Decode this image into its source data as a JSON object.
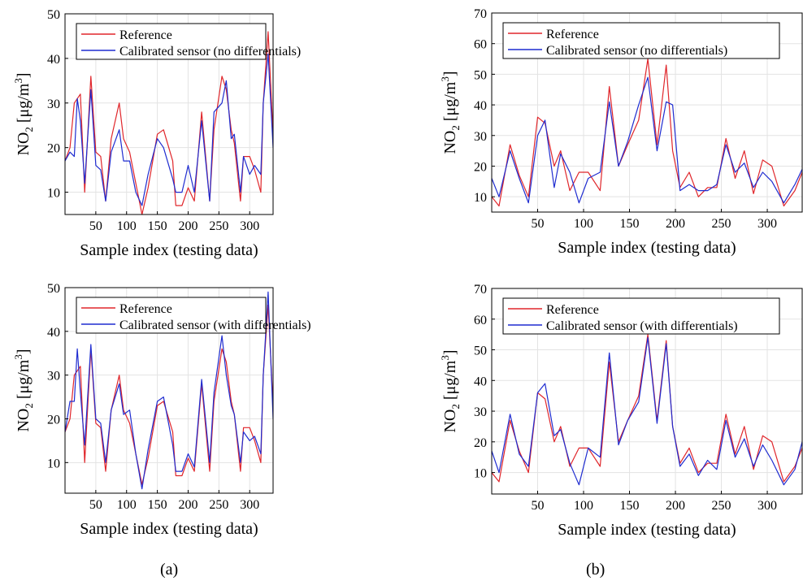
{
  "captions": [
    "(a)",
    "(b)"
  ],
  "colors": {
    "reference": "#e0262b",
    "sensor": "#1f2cd0",
    "grid": "#e3e3e3",
    "axis": "#000000"
  },
  "chart_data": [
    {
      "type": "line",
      "panel": "a-top",
      "xlabel": "Sample index (testing data)",
      "ylabel_main": "NO",
      "ylabel_sub": "2",
      "ylabel_unit": "[μg/m",
      "ylabel_sup": "3",
      "ylabel_close": "]",
      "xlim": [
        0,
        338
      ],
      "ylim": [
        5,
        50
      ],
      "xticks": [
        50,
        100,
        150,
        200,
        250,
        300
      ],
      "yticks": [
        10,
        20,
        30,
        40,
        50
      ],
      "grid": true,
      "legend": "top-left",
      "series": [
        {
          "name": "Reference",
          "color": "#e0262b",
          "x": [
            0,
            8,
            15,
            25,
            32,
            42,
            50,
            58,
            66,
            75,
            88,
            95,
            105,
            115,
            125,
            135,
            150,
            160,
            175,
            180,
            190,
            200,
            210,
            222,
            235,
            242,
            255,
            262,
            270,
            275,
            285,
            290,
            300,
            308,
            318,
            322,
            330,
            338
          ],
          "y": [
            17,
            20,
            30,
            32,
            10,
            36,
            19,
            18,
            8,
            22,
            30,
            22,
            19,
            12,
            5,
            11,
            23,
            24,
            17,
            7,
            7,
            11,
            8,
            28,
            8,
            24,
            36,
            33,
            24,
            21,
            8,
            18,
            18,
            15,
            10,
            30,
            46,
            23
          ]
        },
        {
          "name": "Calibrated sensor (no differentials)",
          "color": "#1f2cd0",
          "x": [
            0,
            8,
            15,
            20,
            25,
            32,
            42,
            50,
            58,
            66,
            75,
            88,
            95,
            105,
            115,
            125,
            135,
            150,
            160,
            175,
            180,
            190,
            200,
            210,
            222,
            235,
            242,
            255,
            262,
            270,
            275,
            285,
            290,
            300,
            308,
            318,
            322,
            330,
            338
          ],
          "y": [
            17,
            19,
            18,
            31,
            26,
            12,
            33,
            16,
            15,
            8,
            19,
            24,
            17,
            17,
            10,
            7,
            14,
            22,
            20,
            13,
            10,
            10,
            16,
            10,
            26,
            8,
            28,
            30,
            35,
            22,
            23,
            10,
            18,
            14,
            16,
            14,
            30,
            41,
            20
          ]
        }
      ]
    },
    {
      "type": "line",
      "panel": "b-top",
      "xlabel": "Sample index (testing data)",
      "ylabel_main": "NO",
      "ylabel_sub": "2",
      "ylabel_unit": "[μg/m",
      "ylabel_sup": "3",
      "ylabel_close": "]",
      "xlim": [
        0,
        338
      ],
      "ylim": [
        5,
        70
      ],
      "xticks": [
        50,
        100,
        150,
        200,
        250,
        300
      ],
      "yticks": [
        10,
        20,
        30,
        40,
        50,
        60,
        70
      ],
      "grid": true,
      "legend": "top-left",
      "series": [
        {
          "name": "Reference",
          "color": "#e0262b",
          "x": [
            0,
            8,
            20,
            30,
            40,
            50,
            58,
            68,
            75,
            85,
            95,
            105,
            118,
            128,
            138,
            148,
            160,
            170,
            180,
            190,
            197,
            205,
            215,
            225,
            235,
            245,
            255,
            265,
            275,
            285,
            295,
            305,
            318,
            330,
            338
          ],
          "y": [
            10,
            7,
            27,
            17,
            10,
            36,
            34,
            20,
            25,
            12,
            18,
            18,
            12,
            46,
            20,
            27,
            35,
            55,
            27,
            53,
            25,
            13,
            18,
            10,
            13,
            13,
            29,
            16,
            25,
            11,
            22,
            20,
            7,
            12,
            18
          ]
        },
        {
          "name": "Calibrated sensor (no differentials)",
          "color": "#1f2cd0",
          "x": [
            0,
            8,
            20,
            30,
            40,
            50,
            58,
            68,
            75,
            85,
            95,
            105,
            118,
            128,
            138,
            148,
            160,
            170,
            180,
            190,
            197,
            205,
            215,
            225,
            235,
            245,
            255,
            265,
            275,
            285,
            295,
            305,
            318,
            330,
            338
          ],
          "y": [
            16,
            10,
            25,
            16,
            8,
            30,
            35,
            13,
            24,
            18,
            8,
            16,
            18,
            41,
            20,
            28,
            40,
            49,
            25,
            41,
            40,
            12,
            14,
            12,
            12,
            14,
            27,
            18,
            21,
            13,
            18,
            15,
            8,
            14,
            19
          ]
        }
      ]
    },
    {
      "type": "line",
      "panel": "a-bottom",
      "xlabel": "Sample index (testing data)",
      "ylabel_main": "NO",
      "ylabel_sub": "2",
      "ylabel_unit": "[μg/m",
      "ylabel_sup": "3",
      "ylabel_close": "]",
      "xlim": [
        0,
        338
      ],
      "ylim": [
        3,
        50
      ],
      "xticks": [
        50,
        100,
        150,
        200,
        250,
        300
      ],
      "yticks": [
        10,
        20,
        30,
        40,
        50
      ],
      "grid": true,
      "legend": "top-left",
      "series": [
        {
          "name": "Reference",
          "color": "#e0262b",
          "x": [
            0,
            8,
            15,
            25,
            32,
            42,
            50,
            58,
            66,
            75,
            88,
            95,
            105,
            115,
            125,
            135,
            150,
            160,
            175,
            180,
            190,
            200,
            210,
            222,
            235,
            242,
            255,
            262,
            270,
            275,
            285,
            290,
            300,
            308,
            318,
            322,
            330,
            338
          ],
          "y": [
            17,
            20,
            30,
            32,
            10,
            36,
            19,
            18,
            8,
            22,
            30,
            22,
            19,
            12,
            5,
            11,
            23,
            24,
            17,
            7,
            7,
            11,
            8,
            28,
            8,
            24,
            36,
            33,
            24,
            21,
            8,
            18,
            18,
            15,
            10,
            30,
            46,
            23
          ]
        },
        {
          "name": "Calibrated sensor (with differentials)",
          "color": "#1f2cd0",
          "x": [
            0,
            8,
            15,
            20,
            25,
            32,
            42,
            50,
            58,
            66,
            75,
            88,
            95,
            105,
            115,
            125,
            135,
            150,
            160,
            175,
            180,
            190,
            200,
            210,
            222,
            235,
            242,
            255,
            262,
            270,
            275,
            285,
            290,
            300,
            308,
            318,
            322,
            330,
            338
          ],
          "y": [
            17,
            24,
            24,
            36,
            26,
            14,
            37,
            20,
            19,
            10,
            22,
            28,
            21,
            22,
            12,
            4,
            13,
            24,
            25,
            14,
            8,
            8,
            12,
            9,
            29,
            10,
            26,
            39,
            30,
            23,
            21,
            10,
            17,
            15,
            16,
            12,
            30,
            49,
            20
          ]
        }
      ]
    },
    {
      "type": "line",
      "panel": "b-bottom",
      "xlabel": "Sample index (testing data)",
      "ylabel_main": "NO",
      "ylabel_sub": "2",
      "ylabel_unit": "[μg/m",
      "ylabel_sup": "3",
      "ylabel_close": "]",
      "xlim": [
        0,
        338
      ],
      "ylim": [
        3,
        70
      ],
      "xticks": [
        50,
        100,
        150,
        200,
        250,
        300
      ],
      "yticks": [
        10,
        20,
        30,
        40,
        50,
        60,
        70
      ],
      "grid": true,
      "legend": "top-left",
      "series": [
        {
          "name": "Reference",
          "color": "#e0262b",
          "x": [
            0,
            8,
            20,
            30,
            40,
            50,
            58,
            68,
            75,
            85,
            95,
            105,
            118,
            128,
            138,
            148,
            160,
            170,
            180,
            190,
            197,
            205,
            215,
            225,
            235,
            245,
            255,
            265,
            275,
            285,
            295,
            305,
            318,
            330,
            338
          ],
          "y": [
            10,
            7,
            27,
            17,
            10,
            36,
            34,
            20,
            25,
            12,
            18,
            18,
            12,
            46,
            20,
            27,
            35,
            55,
            27,
            53,
            25,
            13,
            18,
            10,
            13,
            13,
            29,
            16,
            25,
            11,
            22,
            20,
            7,
            12,
            18
          ]
        },
        {
          "name": "Calibrated sensor (with differentials)",
          "color": "#1f2cd0",
          "x": [
            0,
            8,
            20,
            30,
            40,
            50,
            58,
            68,
            75,
            85,
            95,
            105,
            118,
            128,
            138,
            148,
            160,
            170,
            180,
            190,
            197,
            205,
            215,
            225,
            235,
            245,
            255,
            265,
            275,
            285,
            295,
            305,
            318,
            330,
            338
          ],
          "y": [
            17,
            10,
            29,
            16,
            12,
            36,
            39,
            22,
            24,
            13,
            6,
            18,
            15,
            49,
            19,
            27,
            33,
            54,
            26,
            52,
            25,
            12,
            16,
            9,
            14,
            11,
            27,
            15,
            21,
            12,
            19,
            14,
            6,
            11,
            20
          ]
        }
      ]
    }
  ]
}
